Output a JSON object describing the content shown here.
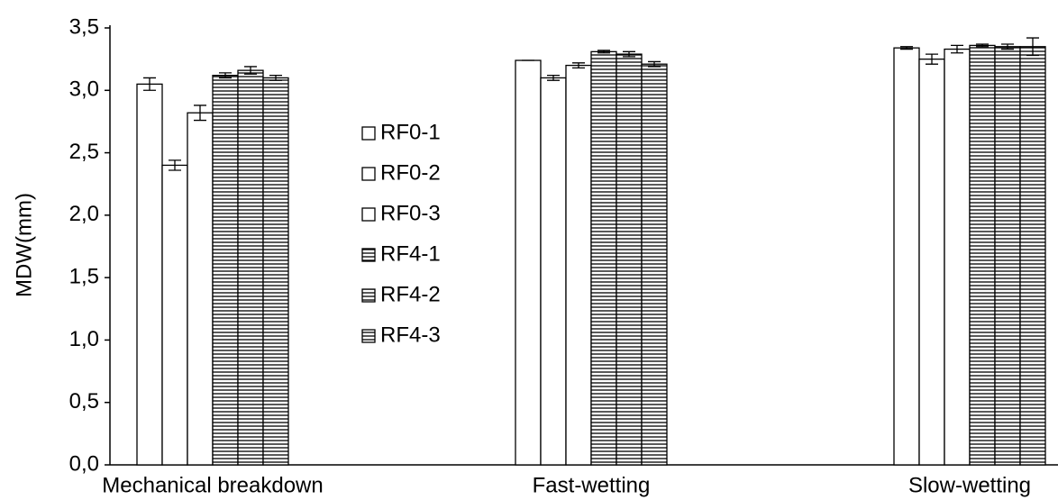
{
  "chart_data": {
    "type": "bar",
    "y_label": "MDW(mm)",
    "categories": [
      "Mechanical breakdown",
      "Fast-wetting",
      "Slow-wetting"
    ],
    "ylim": [
      0,
      3.5
    ],
    "yticks": [
      {
        "value": 0,
        "label": "0,0"
      },
      {
        "value": 0.5,
        "label": "0,5"
      },
      {
        "value": 1,
        "label": "1,0"
      },
      {
        "value": 1.5,
        "label": "1,5"
      },
      {
        "value": 2,
        "label": "2,0"
      },
      {
        "value": 2.5,
        "label": "2,5"
      },
      {
        "value": 3,
        "label": "3,0"
      },
      {
        "value": 3.5,
        "label": "3,5"
      }
    ],
    "series": [
      {
        "name": "RF0-1",
        "color": "#ffffff",
        "hatched": false,
        "values": [
          3.05,
          3.24,
          3.34
        ],
        "errors": [
          0.05,
          0,
          0.01
        ]
      },
      {
        "name": "RF0-2",
        "color": "#ffffff",
        "hatched": false,
        "values": [
          2.4,
          3.1,
          3.25
        ],
        "errors": [
          0.04,
          0.02,
          0.04
        ]
      },
      {
        "name": "RF0-3",
        "color": "#ffffff",
        "hatched": false,
        "values": [
          2.82,
          3.2,
          3.33
        ],
        "errors": [
          0.06,
          0.02,
          0.03
        ]
      },
      {
        "name": "RF4-1",
        "color": "#ffffff",
        "hatched": true,
        "values": [
          3.12,
          3.31,
          3.36
        ],
        "errors": [
          0.02,
          0.01,
          0.01
        ]
      },
      {
        "name": "RF4-2",
        "color": "#ffffff",
        "hatched": true,
        "values": [
          3.16,
          3.29,
          3.35
        ],
        "errors": [
          0.03,
          0.02,
          0.02
        ]
      },
      {
        "name": "RF4-3",
        "color": "#ffffff",
        "hatched": true,
        "values": [
          3.1,
          3.21,
          3.35
        ],
        "errors": [
          0.02,
          0.02,
          0.07
        ]
      }
    ]
  }
}
